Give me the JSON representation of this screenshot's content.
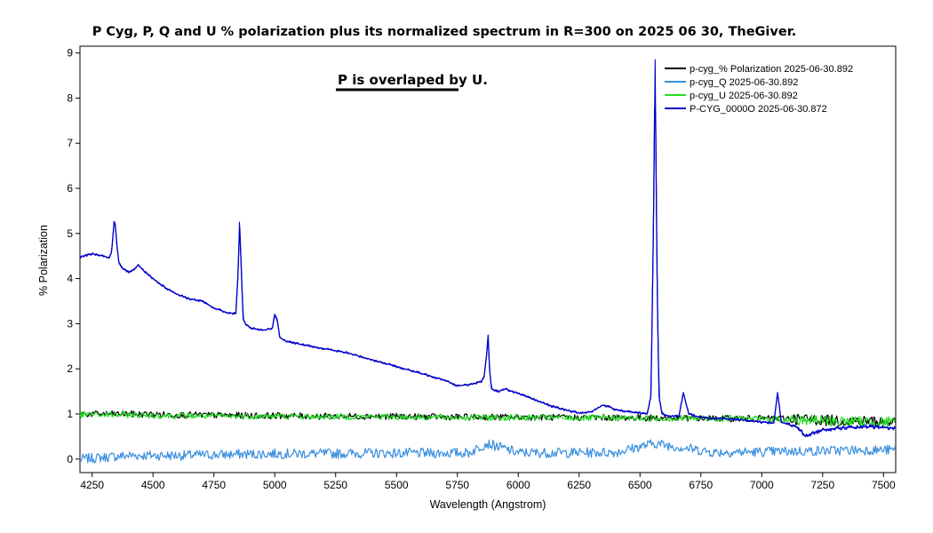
{
  "chart_data": {
    "type": "line",
    "title": "P Cyg,  P, Q and U % polarization  plus its normalized spectrum in R=300 on 2025 06 30, TheGiver.",
    "xlabel": "Wavelength (Angstrom)",
    "ylabel": "% Polarization",
    "xlim": [
      4200,
      7550
    ],
    "ylim": [
      -0.3,
      9.15
    ],
    "x_ticks": [
      4250,
      4500,
      4750,
      5000,
      5250,
      5500,
      5750,
      6000,
      6250,
      6500,
      6750,
      7000,
      7250,
      7500
    ],
    "y_ticks": [
      0,
      1,
      2,
      3,
      4,
      5,
      6,
      7,
      8,
      9
    ],
    "grid": false,
    "legend_position": "top-right",
    "annotation": "P is overlaped by U.",
    "series": [
      {
        "name": "p-cyg_% Polarization  2025-06-30.892",
        "color": "#000000",
        "x": [
          4200,
          4400,
          4600,
          4800,
          5000,
          5200,
          5400,
          5600,
          5800,
          6000,
          6200,
          6400,
          6600,
          6800,
          6900,
          7000,
          7100,
          7200,
          7300,
          7400,
          7500,
          7550
        ],
        "y": [
          1.0,
          1.0,
          0.98,
          0.97,
          0.96,
          0.95,
          0.95,
          0.94,
          0.93,
          0.93,
          0.92,
          0.92,
          0.91,
          0.9,
          0.9,
          0.9,
          0.9,
          0.88,
          0.85,
          0.85,
          0.83,
          0.82
        ]
      },
      {
        "name": "p-cyg_Q  2025-06-30.892",
        "color": "#3a8fde",
        "x": [
          4200,
          4400,
          4600,
          4800,
          5000,
          5200,
          5400,
          5600,
          5800,
          5870,
          6000,
          6200,
          6400,
          6560,
          6800,
          7000,
          7200,
          7400,
          7550
        ],
        "y": [
          0.0,
          0.08,
          0.08,
          0.1,
          0.12,
          0.12,
          0.13,
          0.13,
          0.14,
          0.35,
          0.14,
          0.14,
          0.15,
          0.35,
          0.15,
          0.16,
          0.18,
          0.2,
          0.2
        ]
      },
      {
        "name": "p-cyg_U  2025-06-30.892",
        "color": "#22dd22",
        "x": [
          4200,
          4400,
          4600,
          4800,
          5000,
          5200,
          5400,
          5600,
          5800,
          6000,
          6200,
          6400,
          6600,
          6800,
          6900,
          7000,
          7100,
          7200,
          7300,
          7400,
          7500,
          7550
        ],
        "y": [
          0.98,
          0.98,
          0.96,
          0.95,
          0.95,
          0.94,
          0.94,
          0.93,
          0.92,
          0.92,
          0.91,
          0.91,
          0.9,
          0.9,
          0.9,
          0.89,
          0.88,
          0.86,
          0.84,
          0.83,
          0.82,
          0.8
        ]
      },
      {
        "name": "P-CYG_0000O  2025-06-30.872",
        "color": "#0000cc",
        "x": [
          4200,
          4250,
          4300,
          4320,
          4330,
          4340,
          4345,
          4352,
          4360,
          4370,
          4380,
          4400,
          4420,
          4440,
          4460,
          4480,
          4500,
          4550,
          4600,
          4650,
          4700,
          4750,
          4800,
          4840,
          4850,
          4855,
          4862,
          4870,
          4880,
          4900,
          4950,
          4990,
          5000,
          5010,
          5020,
          5050,
          5100,
          5150,
          5200,
          5300,
          5400,
          5500,
          5600,
          5700,
          5750,
          5800,
          5850,
          5860,
          5870,
          5876,
          5882,
          5890,
          5920,
          5950,
          6000,
          6050,
          6100,
          6150,
          6200,
          6250,
          6300,
          6350,
          6400,
          6450,
          6500,
          6530,
          6545,
          6555,
          6562,
          6570,
          6578,
          6590,
          6620,
          6660,
          6678,
          6700,
          6750,
          6800,
          6850,
          6900,
          6950,
          7000,
          7050,
          7065,
          7080,
          7100,
          7150,
          7180,
          7200,
          7250,
          7300,
          7350,
          7400,
          7450,
          7500,
          7550
        ],
        "y": [
          4.48,
          4.55,
          4.5,
          4.45,
          4.6,
          5.25,
          5.2,
          4.7,
          4.35,
          4.25,
          4.2,
          4.15,
          4.2,
          4.3,
          4.18,
          4.1,
          4.0,
          3.8,
          3.65,
          3.55,
          3.5,
          3.35,
          3.25,
          3.22,
          4.2,
          5.25,
          4.3,
          3.1,
          3.0,
          2.9,
          2.85,
          2.9,
          3.2,
          3.1,
          2.7,
          2.6,
          2.55,
          2.5,
          2.45,
          2.35,
          2.2,
          2.05,
          1.9,
          1.75,
          1.62,
          1.65,
          1.72,
          1.85,
          2.3,
          2.75,
          2.0,
          1.55,
          1.5,
          1.55,
          1.45,
          1.35,
          1.25,
          1.15,
          1.08,
          1.02,
          1.05,
          1.2,
          1.1,
          1.05,
          1.02,
          1.0,
          1.4,
          5.0,
          8.85,
          4.0,
          1.4,
          1.0,
          0.95,
          0.95,
          1.48,
          1.0,
          0.92,
          0.9,
          0.9,
          0.88,
          0.85,
          0.82,
          0.8,
          1.48,
          0.82,
          0.78,
          0.7,
          0.5,
          0.55,
          0.65,
          0.68,
          0.7,
          0.7,
          0.72,
          0.7,
          0.68
        ]
      }
    ]
  }
}
